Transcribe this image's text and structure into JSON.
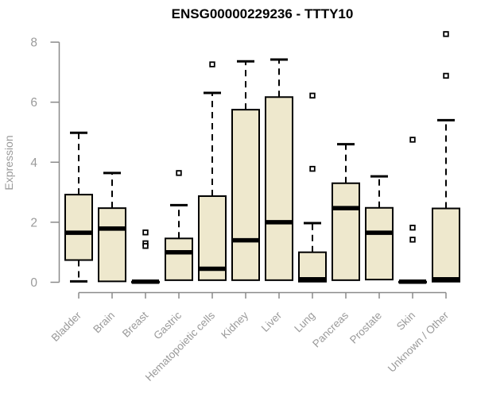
{
  "chart_data": {
    "type": "boxplot",
    "title": "ENSG00000229236 - TTTY10",
    "xlabel": "",
    "ylabel": "Expression",
    "ylim": [
      0,
      8.5
    ],
    "yticks": [
      0,
      2,
      4,
      6,
      8
    ],
    "grid": "off",
    "legend": "none",
    "categories": [
      "Bladder",
      "Brain",
      "Breast",
      "Gastric",
      "Hematopoietic cells",
      "Kidney",
      "Liver",
      "Lung",
      "Pancreas",
      "Prostate",
      "Skin",
      "Unknown / Other"
    ],
    "boxes": [
      {
        "category": "Bladder",
        "whisker_low": 0.03,
        "q1": 0.74,
        "median": 1.65,
        "q3": 2.92,
        "whisker_high": 4.98,
        "outliers": []
      },
      {
        "category": "Brain",
        "whisker_low": 0.03,
        "q1": 0.03,
        "median": 1.79,
        "q3": 2.47,
        "whisker_high": 3.64,
        "outliers": []
      },
      {
        "category": "Breast",
        "whisker_low": 0.02,
        "q1": 0.02,
        "median": 0.02,
        "q3": 0.02,
        "whisker_high": 0.02,
        "outliers": [
          1.66,
          1.3,
          1.21
        ]
      },
      {
        "category": "Gastric",
        "whisker_low": 0.07,
        "q1": 0.07,
        "median": 1.0,
        "q3": 1.46,
        "whisker_high": 2.57,
        "outliers": [
          3.64
        ]
      },
      {
        "category": "Hematopoietic cells",
        "whisker_low": 0.07,
        "q1": 0.07,
        "median": 0.45,
        "q3": 2.87,
        "whisker_high": 6.31,
        "outliers": [
          7.26
        ]
      },
      {
        "category": "Kidney",
        "whisker_low": 0.07,
        "q1": 0.07,
        "median": 1.4,
        "q3": 5.75,
        "whisker_high": 7.36,
        "outliers": []
      },
      {
        "category": "Liver",
        "whisker_low": 0.07,
        "q1": 0.07,
        "median": 2.0,
        "q3": 6.17,
        "whisker_high": 7.42,
        "outliers": []
      },
      {
        "category": "Lung",
        "whisker_low": 0.02,
        "q1": 0.02,
        "median": 0.1,
        "q3": 1.0,
        "whisker_high": 1.97,
        "outliers": [
          6.22,
          3.78
        ]
      },
      {
        "category": "Pancreas",
        "whisker_low": 0.07,
        "q1": 0.07,
        "median": 2.47,
        "q3": 3.3,
        "whisker_high": 4.6,
        "outliers": []
      },
      {
        "category": "Prostate",
        "whisker_low": 0.09,
        "q1": 0.09,
        "median": 1.65,
        "q3": 2.48,
        "whisker_high": 3.53,
        "outliers": []
      },
      {
        "category": "Skin",
        "whisker_low": 0.02,
        "q1": 0.02,
        "median": 0.02,
        "q3": 0.02,
        "whisker_high": 0.02,
        "outliers": [
          4.75,
          1.82,
          1.42
        ]
      },
      {
        "category": "Unknown / Other",
        "whisker_low": 0.02,
        "q1": 0.02,
        "median": 0.1,
        "q3": 2.46,
        "whisker_high": 5.4,
        "outliers": [
          8.27,
          6.88
        ]
      }
    ],
    "style": {
      "background_color": "#ffffff",
      "box_fill": "#eee8cd",
      "box_border": "#000000",
      "median_color": "#000000",
      "whisker_style": "dashed",
      "outlier_marker": "open-square",
      "axis_color": "#8a8a8a",
      "tick_label_color": "#9a9a9a",
      "title_color": "#000000"
    }
  }
}
